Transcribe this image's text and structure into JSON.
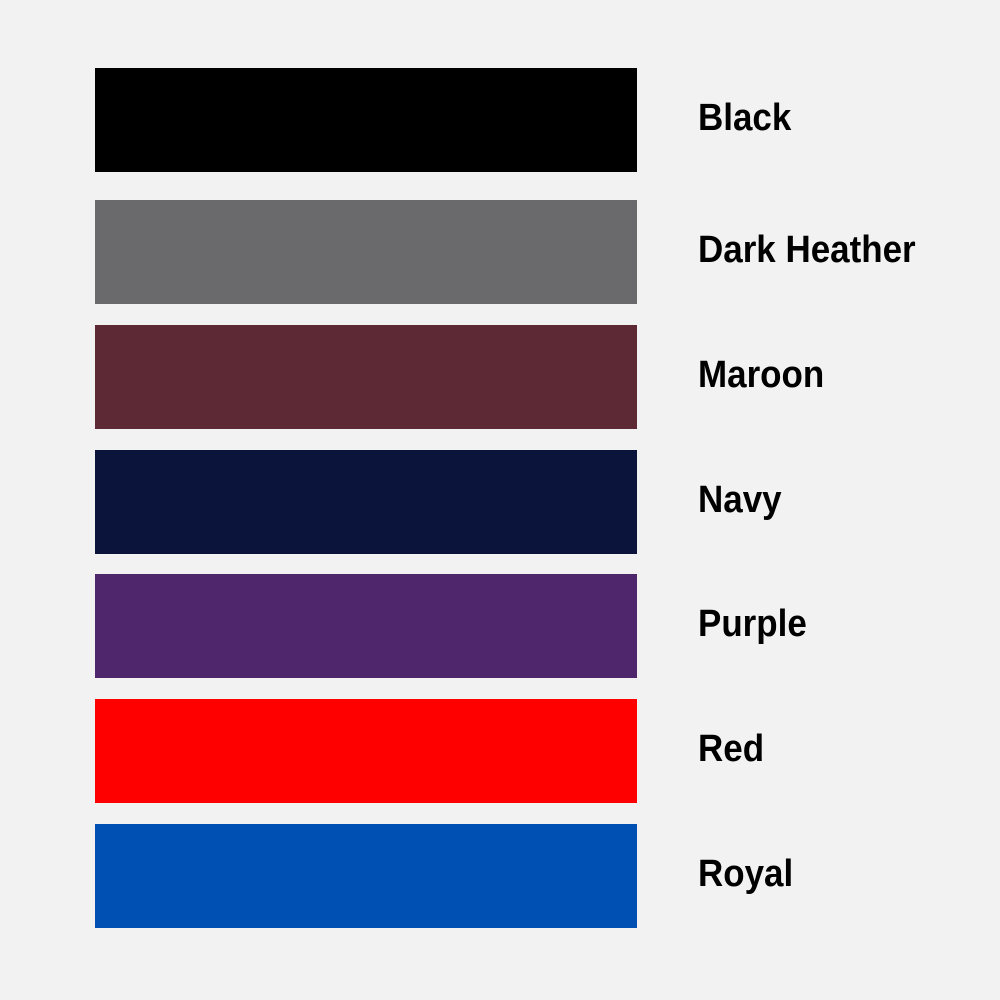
{
  "swatches": [
    {
      "label": "Black",
      "color": "#000000"
    },
    {
      "label": "Dark Heather",
      "color": "#6a6a6c"
    },
    {
      "label": "Maroon",
      "color": "#5d2934"
    },
    {
      "label": "Navy",
      "color": "#0b153b"
    },
    {
      "label": "Purple",
      "color": "#4f266b"
    },
    {
      "label": "Red",
      "color": "#ff0000"
    },
    {
      "label": "Royal",
      "color": "#0050b4"
    }
  ]
}
